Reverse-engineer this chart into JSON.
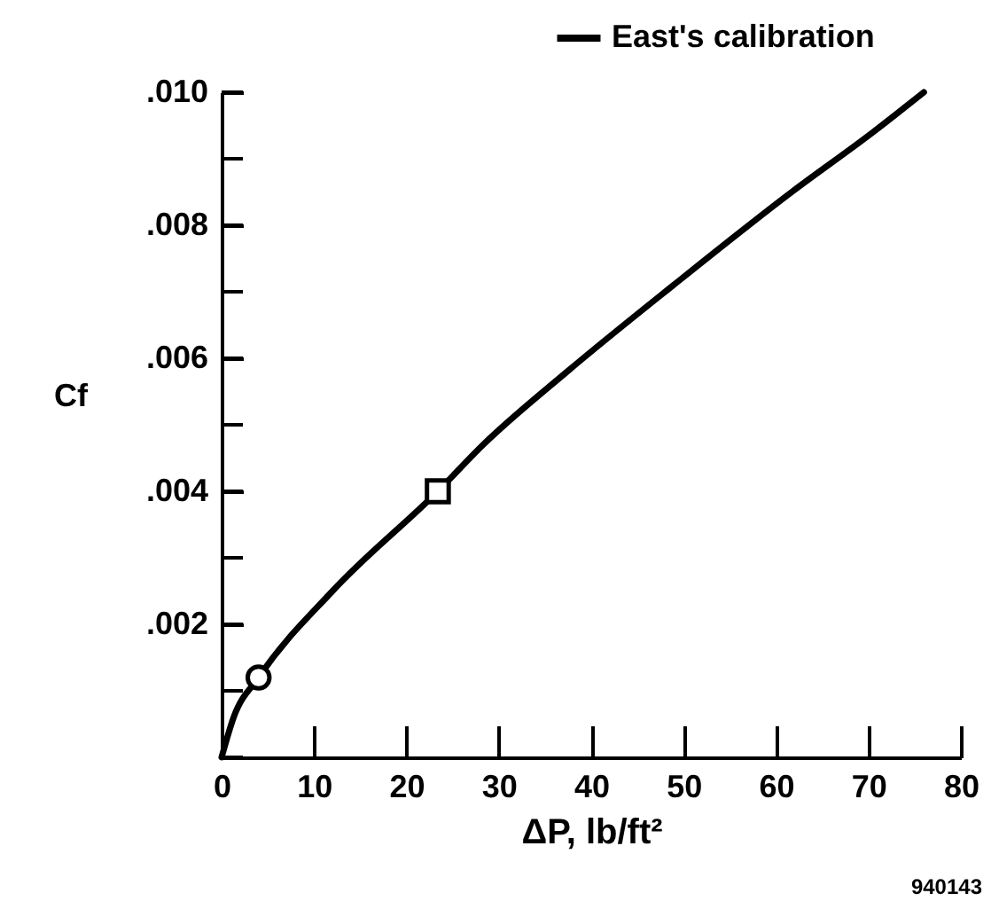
{
  "chart_data": {
    "type": "line",
    "xlabel": "ΔP, lb/ft²",
    "ylabel": "Cf",
    "xlim": [
      0,
      80
    ],
    "ylim": [
      0,
      0.01
    ],
    "xticks": [
      0,
      10,
      20,
      30,
      40,
      50,
      60,
      70,
      80
    ],
    "yticks": [
      {
        "value": 0,
        "label": null
      },
      {
        "value": 0.001,
        "label": null
      },
      {
        "value": 0.002,
        "label": ".002"
      },
      {
        "value": 0.003,
        "label": null
      },
      {
        "value": 0.004,
        "label": ".004"
      },
      {
        "value": 0.005,
        "label": null
      },
      {
        "value": 0.006,
        "label": ".006"
      },
      {
        "value": 0.007,
        "label": null
      },
      {
        "value": 0.008,
        "label": ".008"
      },
      {
        "value": 0.009,
        "label": null
      },
      {
        "value": 0.01,
        "label": ".010"
      }
    ],
    "grid": false,
    "legend": "top right",
    "line_style": "solid",
    "series": [
      {
        "name": "East's calibration",
        "color": "#000000",
        "marker": "none",
        "x": [
          0,
          1.3,
          4,
          12,
          23.4,
          28.3,
          37.4,
          48.9,
          61.7,
          70.5,
          76
        ],
        "values": [
          0,
          0.0006,
          0.0012,
          0.0025,
          0.004,
          0.0047,
          0.0058,
          0.0071,
          0.0085,
          0.0094,
          0.01
        ]
      },
      {
        "type": "scatter",
        "color": "#000000",
        "marker": "circle",
        "x": [
          4
        ],
        "values": [
          0.0012
        ]
      },
      {
        "type": "scatter",
        "color": "#000000",
        "marker": "square",
        "x": [
          23.4
        ],
        "values": [
          0.004
        ]
      }
    ],
    "annotations": [
      "940143"
    ]
  }
}
